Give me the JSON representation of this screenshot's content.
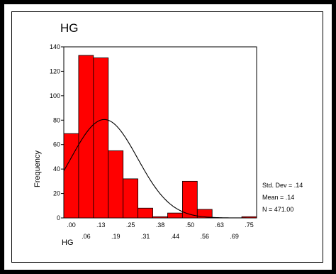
{
  "chart_data": {
    "type": "bar",
    "title": "HG",
    "xlabel": "HG",
    "ylabel": "Frequency",
    "bin_centers": [
      0.0,
      0.06,
      0.13,
      0.19,
      0.25,
      0.31,
      0.38,
      0.44,
      0.5,
      0.56,
      0.63,
      0.69,
      0.75
    ],
    "values": [
      69,
      133,
      131,
      55,
      32,
      8,
      1,
      4,
      30,
      7,
      0,
      0,
      1
    ],
    "ylim": [
      0,
      140
    ],
    "yticks": [
      "0",
      "20",
      "40",
      "60",
      "80",
      "100",
      "120",
      "140"
    ],
    "xticks_top": [
      ".00",
      ".13",
      ".25",
      ".38",
      ".50",
      ".63",
      ".75"
    ],
    "xticks_bottom": [
      ".06",
      ".19",
      ".31",
      ".44",
      ".56",
      ".69"
    ],
    "normal_curve": {
      "mean": 0.14,
      "std": 0.14,
      "n": 471
    },
    "bar_color": "#ff0000",
    "stats": {
      "std": "Std. Dev = .14",
      "mean": "Mean = .14",
      "n": "N = 471.00"
    }
  }
}
